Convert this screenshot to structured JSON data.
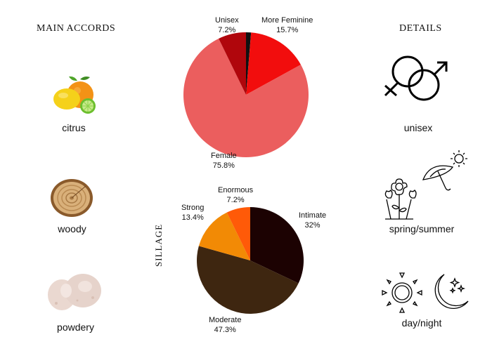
{
  "headings": {
    "main_accords": "MAIN ACCORDS",
    "details": "DETAILS",
    "sillage": "SILLAGE"
  },
  "accords": [
    {
      "label": "citrus",
      "icon": "citrus-fruit-icon"
    },
    {
      "label": "woody",
      "icon": "wood-slice-icon"
    },
    {
      "label": "powdery",
      "icon": "powder-icon"
    }
  ],
  "details": [
    {
      "label": "unisex",
      "icon": "gender-symbols-icon"
    },
    {
      "label": "spring/summer",
      "icon": "flowers-umbrella-sun-icon"
    },
    {
      "label": "day/night",
      "icon": "sun-moon-icon"
    }
  ],
  "chart_data": [
    {
      "type": "pie",
      "title": "",
      "slices": [
        {
          "name": "Unisex",
          "value": 7.2,
          "display": "7.2%",
          "color": "#b0060c"
        },
        {
          "name": "More Feminine",
          "value": 15.7,
          "display": "15.7%",
          "color": "#f20d0d"
        },
        {
          "name": "Female",
          "value": 75.8,
          "display": "75.8%",
          "color": "#eb5e5e"
        },
        {
          "name": "",
          "value": 1.3,
          "display": "",
          "color": "#111111"
        }
      ]
    },
    {
      "type": "pie",
      "title": "SILLAGE",
      "slices": [
        {
          "name": "Intimate",
          "value": 32,
          "display": "32%",
          "color": "#1c0202"
        },
        {
          "name": "Moderate",
          "value": 47.3,
          "display": "47.3%",
          "color": "#3e2610"
        },
        {
          "name": "Strong",
          "value": 13.4,
          "display": "13.4%",
          "color": "#f28a05"
        },
        {
          "name": "Enormous",
          "value": 7.2,
          "display": "7.2%",
          "color": "#ff5a08"
        }
      ]
    }
  ]
}
